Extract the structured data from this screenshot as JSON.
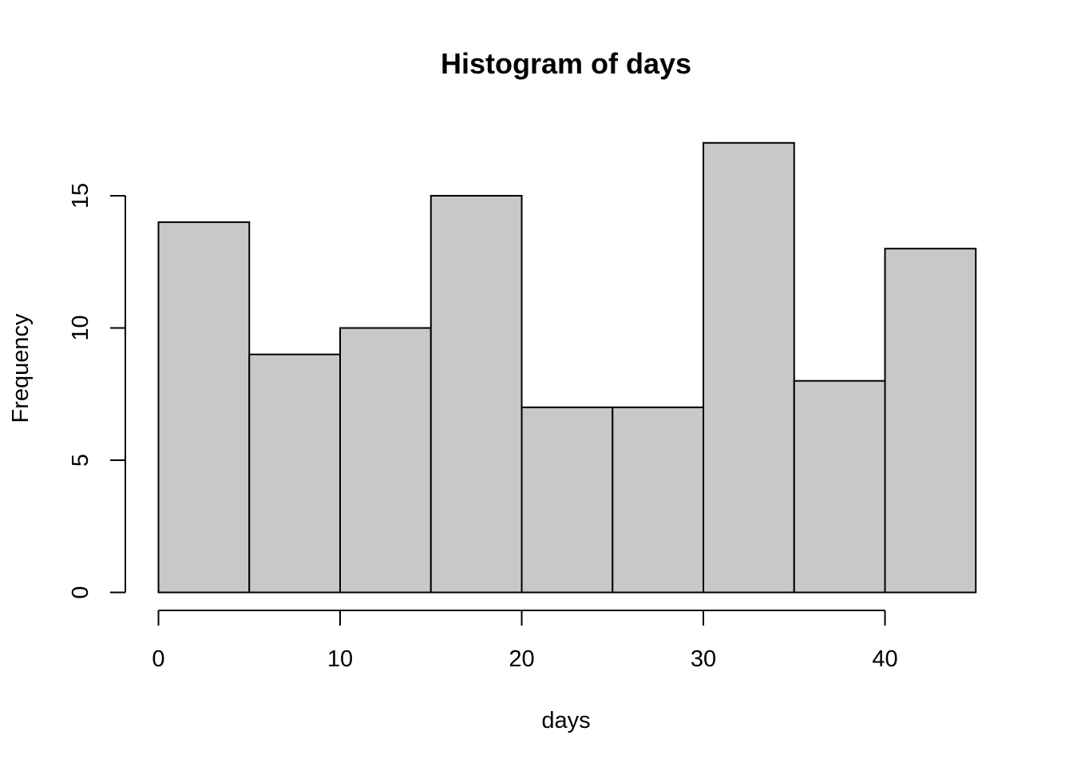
{
  "chart_data": {
    "type": "bar",
    "title": "Histogram of days",
    "xlabel": "days",
    "ylabel": "Frequency",
    "bins": [
      {
        "x0": 0,
        "x1": 5,
        "value": 14
      },
      {
        "x0": 5,
        "x1": 10,
        "value": 9
      },
      {
        "x0": 10,
        "x1": 15,
        "value": 10
      },
      {
        "x0": 15,
        "x1": 20,
        "value": 15
      },
      {
        "x0": 20,
        "x1": 25,
        "value": 7
      },
      {
        "x0": 25,
        "x1": 30,
        "value": 7
      },
      {
        "x0": 30,
        "x1": 35,
        "value": 17
      },
      {
        "x0": 35,
        "x1": 40,
        "value": 8
      },
      {
        "x0": 40,
        "x1": 45,
        "value": 13
      }
    ],
    "xticks": [
      0,
      10,
      20,
      30,
      40
    ],
    "yticks": [
      0,
      5,
      10,
      15
    ],
    "xlim": [
      0,
      45
    ],
    "ylim": [
      0,
      17
    ],
    "grid": false,
    "bar_fill": "#c8c8c8",
    "bar_stroke": "#000000"
  }
}
